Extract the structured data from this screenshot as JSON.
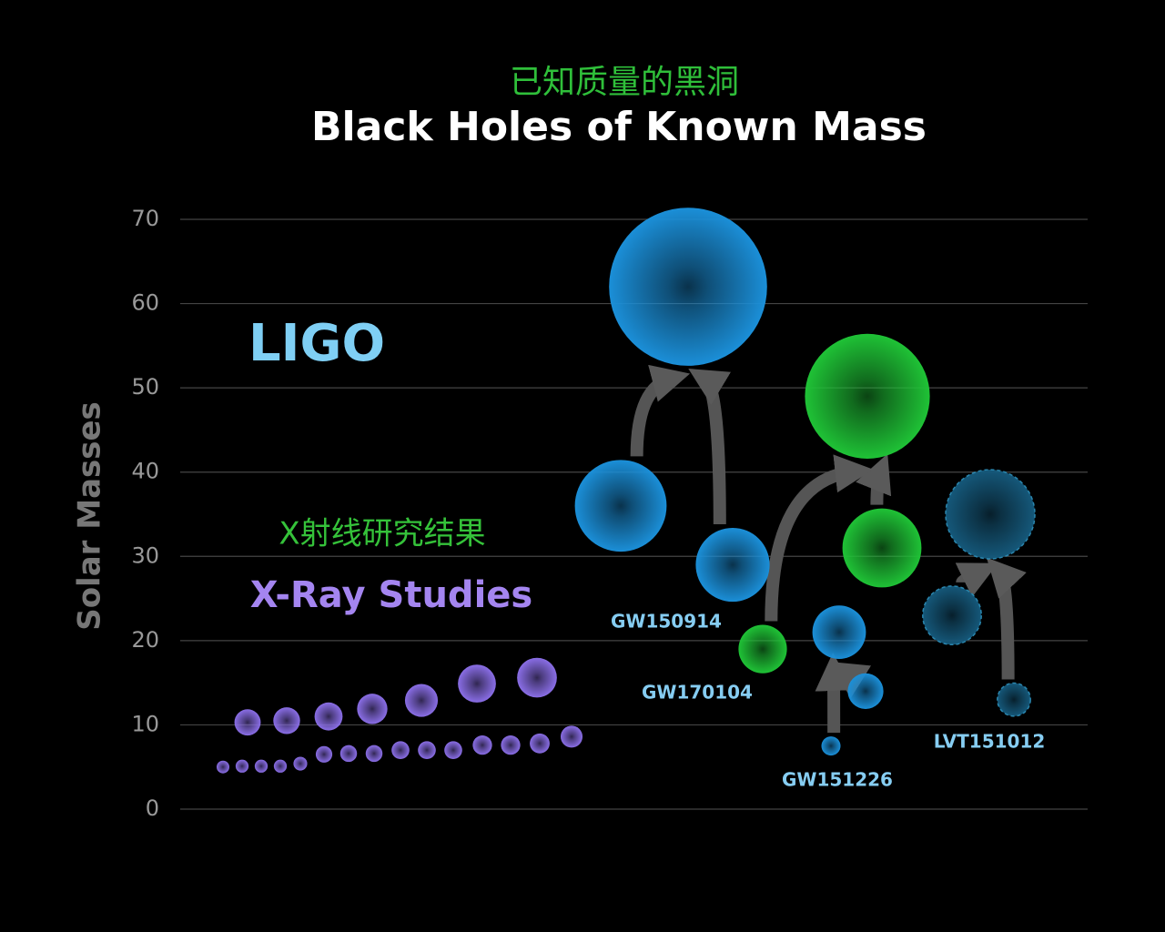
{
  "chart_data": {
    "type": "bubble",
    "subtitle": "已知质量的黑洞",
    "title": "Black Holes of Known Mass",
    "ylabel": "Solar Masses",
    "ylim": [
      0,
      70
    ],
    "yticks": [
      0,
      10,
      20,
      30,
      40,
      50,
      60,
      70
    ],
    "grid": true,
    "annotations": {
      "ligo": "LIGO",
      "xray_zh": "X射线研究结果",
      "xray": "X-Ray Studies"
    },
    "xray": {
      "color": "#8a6ee6",
      "values": [
        10.3,
        10.5,
        11,
        11.9,
        12.9,
        14.9,
        15.6,
        5,
        5.1,
        5.1,
        5.1,
        5.4,
        6.5,
        6.6,
        6.6,
        7,
        7,
        7,
        7.6,
        7.6,
        7.8,
        8.6
      ]
    },
    "events": [
      {
        "name": "GW150914",
        "color": "#1b8fd8",
        "primary": 36,
        "secondary": 29,
        "final": 62
      },
      {
        "name": "GW170104",
        "color": "#1fc236",
        "primary": 31,
        "secondary": 19,
        "final": 49
      },
      {
        "name": "GW151226",
        "color": "#1b8fd8",
        "primary": 14,
        "secondary": 7.5,
        "final": 21
      },
      {
        "name": "LVT151012",
        "color": "#15587a",
        "style": "dashed",
        "primary": 23,
        "secondary": 13,
        "final": 35
      }
    ]
  }
}
